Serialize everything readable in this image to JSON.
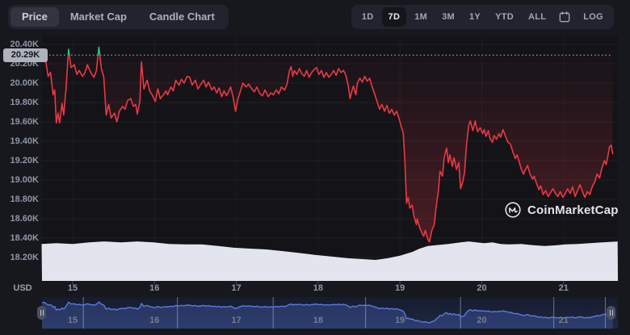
{
  "toolbar": {
    "chart_type_tabs": [
      {
        "label": "Price",
        "selected": true
      },
      {
        "label": "Market Cap",
        "selected": false
      },
      {
        "label": "Candle Chart",
        "selected": false
      }
    ],
    "range_buttons": [
      {
        "label": "1D",
        "selected": false
      },
      {
        "label": "7D",
        "selected": true
      },
      {
        "label": "1M",
        "selected": false
      },
      {
        "label": "3M",
        "selected": false
      },
      {
        "label": "1Y",
        "selected": false
      },
      {
        "label": "YTD",
        "selected": false
      },
      {
        "label": "ALL",
        "selected": false
      }
    ],
    "calendar_icon": "calendar-icon",
    "log_button": {
      "label": "LOG",
      "selected": false
    }
  },
  "watermark": {
    "logo_icon": "coinmarketcap-logo-icon",
    "text": "CoinMarketCap"
  },
  "chart_data": {
    "type": "line",
    "unit_label": "USD",
    "baseline": {
      "value": 20.29,
      "label": "20.29K"
    },
    "y_axis": {
      "ticks": [
        {
          "label": "20.40K",
          "value": 20.4
        },
        {
          "label": "20.20K",
          "value": 20.2
        },
        {
          "label": "20.00K",
          "value": 20.0
        },
        {
          "label": "19.80K",
          "value": 19.8
        },
        {
          "label": "19.60K",
          "value": 19.6
        },
        {
          "label": "19.40K",
          "value": 19.4
        },
        {
          "label": "19.20K",
          "value": 19.2
        },
        {
          "label": "19.00K",
          "value": 19.0
        },
        {
          "label": "18.80K",
          "value": 18.8
        },
        {
          "label": "18.60K",
          "value": 18.6
        },
        {
          "label": "18.40K",
          "value": 18.4
        },
        {
          "label": "18.20K",
          "value": 18.2
        }
      ]
    },
    "x_axis": {
      "ticks": [
        {
          "label": "15",
          "day": 15
        },
        {
          "label": "16",
          "day": 16
        },
        {
          "label": "17",
          "day": 17
        },
        {
          "label": "18",
          "day": 18
        },
        {
          "label": "19",
          "day": 19
        },
        {
          "label": "20",
          "day": 20
        },
        {
          "label": "21",
          "day": 21
        }
      ]
    },
    "colors": {
      "line_down": "#ea3943",
      "line_up": "#16c784",
      "fill_down": "rgba(234,57,67,0.30)",
      "volume_area": "#e2e5ee",
      "navigator_line": "#5b7ae0",
      "navigator_fill": "rgba(80,110,210,0.30)",
      "baseline_tag_bg": "#aeb2bd"
    },
    "price_series": [
      [
        14.62,
        20.29
      ],
      [
        14.65,
        20.34
      ],
      [
        14.67,
        20.23
      ],
      [
        14.7,
        20.07
      ],
      [
        14.73,
        20.11
      ],
      [
        14.76,
        19.88
      ],
      [
        14.78,
        19.93
      ],
      [
        14.8,
        19.59
      ],
      [
        14.82,
        19.69
      ],
      [
        14.84,
        19.59
      ],
      [
        14.87,
        19.79
      ],
      [
        14.89,
        19.67
      ],
      [
        14.92,
        19.96
      ],
      [
        14.95,
        20.35
      ],
      [
        14.98,
        20.16
      ],
      [
        15.02,
        20.19
      ],
      [
        15.05,
        20.09
      ],
      [
        15.08,
        20.13
      ],
      [
        15.12,
        20.07
      ],
      [
        15.15,
        20.11
      ],
      [
        15.18,
        20.19
      ],
      [
        15.22,
        20.11
      ],
      [
        15.26,
        20.06
      ],
      [
        15.29,
        20.13
      ],
      [
        15.32,
        20.37
      ],
      [
        15.35,
        20.15
      ],
      [
        15.38,
        20.06
      ],
      [
        15.41,
        19.67
      ],
      [
        15.44,
        19.78
      ],
      [
        15.47,
        19.64
      ],
      [
        15.51,
        19.69
      ],
      [
        15.54,
        19.6
      ],
      [
        15.57,
        19.71
      ],
      [
        15.61,
        19.76
      ],
      [
        15.64,
        19.73
      ],
      [
        15.67,
        19.82
      ],
      [
        15.71,
        19.84
      ],
      [
        15.74,
        19.76
      ],
      [
        15.77,
        19.78
      ],
      [
        15.79,
        19.68
      ],
      [
        15.82,
        19.81
      ],
      [
        15.84,
        20.22
      ],
      [
        15.87,
        19.94
      ],
      [
        15.91,
        20.03
      ],
      [
        15.94,
        19.92
      ],
      [
        15.97,
        19.88
      ],
      [
        16.01,
        19.81
      ],
      [
        16.04,
        19.94
      ],
      [
        16.07,
        19.84
      ],
      [
        16.11,
        19.88
      ],
      [
        16.14,
        19.92
      ],
      [
        16.16,
        19.88
      ],
      [
        16.2,
        19.96
      ],
      [
        16.23,
        19.92
      ],
      [
        16.26,
        20.03
      ],
      [
        16.3,
        19.98
      ],
      [
        16.33,
        20.04
      ],
      [
        16.36,
        20.0
      ],
      [
        16.4,
        20.07
      ],
      [
        16.43,
        20.06
      ],
      [
        16.46,
        19.98
      ],
      [
        16.5,
        20.03
      ],
      [
        16.53,
        19.94
      ],
      [
        16.56,
        19.98
      ],
      [
        16.6,
        20.03
      ],
      [
        16.63,
        19.96
      ],
      [
        16.66,
        20.01
      ],
      [
        16.7,
        19.93
      ],
      [
        16.73,
        19.96
      ],
      [
        16.76,
        19.9
      ],
      [
        16.79,
        19.95
      ],
      [
        16.82,
        19.86
      ],
      [
        16.85,
        19.92
      ],
      [
        16.88,
        19.87
      ],
      [
        16.9,
        19.9
      ],
      [
        16.93,
        19.96
      ],
      [
        16.96,
        19.86
      ],
      [
        16.99,
        19.71
      ],
      [
        17.02,
        19.84
      ],
      [
        17.05,
        19.92
      ],
      [
        17.08,
        20.0
      ],
      [
        17.12,
        19.96
      ],
      [
        17.15,
        19.99
      ],
      [
        17.19,
        19.94
      ],
      [
        17.22,
        19.91
      ],
      [
        17.25,
        19.96
      ],
      [
        17.29,
        19.89
      ],
      [
        17.32,
        19.87
      ],
      [
        17.35,
        19.93
      ],
      [
        17.39,
        19.86
      ],
      [
        17.42,
        19.9
      ],
      [
        17.45,
        19.88
      ],
      [
        17.49,
        19.93
      ],
      [
        17.52,
        19.89
      ],
      [
        17.55,
        19.96
      ],
      [
        17.59,
        19.93
      ],
      [
        17.62,
        19.99
      ],
      [
        17.65,
        20.13
      ],
      [
        17.67,
        20.17
      ],
      [
        17.69,
        20.07
      ],
      [
        17.71,
        20.13
      ],
      [
        17.74,
        20.09
      ],
      [
        17.77,
        20.15
      ],
      [
        17.8,
        20.1
      ],
      [
        17.83,
        20.07
      ],
      [
        17.86,
        20.13
      ],
      [
        17.89,
        20.06
      ],
      [
        17.92,
        20.11
      ],
      [
        17.95,
        20.14
      ],
      [
        17.98,
        20.16
      ],
      [
        18.01,
        20.09
      ],
      [
        18.04,
        20.13
      ],
      [
        18.07,
        20.06
      ],
      [
        18.1,
        20.11
      ],
      [
        18.13,
        20.06
      ],
      [
        18.16,
        20.09
      ],
      [
        18.19,
        20.13
      ],
      [
        18.22,
        20.08
      ],
      [
        18.25,
        20.15
      ],
      [
        18.28,
        20.11
      ],
      [
        18.31,
        20.13
      ],
      [
        18.34,
        20.08
      ],
      [
        18.37,
        19.96
      ],
      [
        18.39,
        19.84
      ],
      [
        18.41,
        19.91
      ],
      [
        18.43,
        19.97
      ],
      [
        18.46,
        19.88
      ],
      [
        18.48,
        20.0
      ],
      [
        18.51,
        20.05
      ],
      [
        18.54,
        20.01
      ],
      [
        18.57,
        20.07
      ],
      [
        18.6,
        20.02
      ],
      [
        18.63,
        20.05
      ],
      [
        18.66,
        19.96
      ],
      [
        18.69,
        19.89
      ],
      [
        18.72,
        19.81
      ],
      [
        18.75,
        19.73
      ],
      [
        18.78,
        19.78
      ],
      [
        18.81,
        19.71
      ],
      [
        18.84,
        19.77
      ],
      [
        18.87,
        19.69
      ],
      [
        18.9,
        19.73
      ],
      [
        18.93,
        19.67
      ],
      [
        18.96,
        19.71
      ],
      [
        18.99,
        19.63
      ],
      [
        19.02,
        19.54
      ],
      [
        19.04,
        19.48
      ],
      [
        19.06,
        19.19
      ],
      [
        19.08,
        18.76
      ],
      [
        19.1,
        18.82
      ],
      [
        19.12,
        18.71
      ],
      [
        19.15,
        18.74
      ],
      [
        19.17,
        18.63
      ],
      [
        19.2,
        18.54
      ],
      [
        19.21,
        18.6
      ],
      [
        19.24,
        18.51
      ],
      [
        19.27,
        18.45
      ],
      [
        19.29,
        18.42
      ],
      [
        19.31,
        18.48
      ],
      [
        19.34,
        18.39
      ],
      [
        19.36,
        18.36
      ],
      [
        19.39,
        18.48
      ],
      [
        19.42,
        18.54
      ],
      [
        19.44,
        18.71
      ],
      [
        19.47,
        18.89
      ],
      [
        19.49,
        19.09
      ],
      [
        19.52,
        19.04
      ],
      [
        19.54,
        19.23
      ],
      [
        19.57,
        19.33
      ],
      [
        19.59,
        19.18
      ],
      [
        19.61,
        19.26
      ],
      [
        19.64,
        19.14
      ],
      [
        19.66,
        19.23
      ],
      [
        19.69,
        19.11
      ],
      [
        19.72,
        19.18
      ],
      [
        19.74,
        18.91
      ],
      [
        19.77,
        18.99
      ],
      [
        19.79,
        19.08
      ],
      [
        19.81,
        19.34
      ],
      [
        19.84,
        19.56
      ],
      [
        19.86,
        19.61
      ],
      [
        19.89,
        19.51
      ],
      [
        19.92,
        19.61
      ],
      [
        19.93,
        19.56
      ],
      [
        19.95,
        19.5
      ],
      [
        19.98,
        19.54
      ],
      [
        20.01,
        19.48
      ],
      [
        20.03,
        19.52
      ],
      [
        20.05,
        19.45
      ],
      [
        20.08,
        19.51
      ],
      [
        20.1,
        19.43
      ],
      [
        20.13,
        19.39
      ],
      [
        20.15,
        19.46
      ],
      [
        20.18,
        19.42
      ],
      [
        20.21,
        19.48
      ],
      [
        20.23,
        19.44
      ],
      [
        20.26,
        19.52
      ],
      [
        20.29,
        19.45
      ],
      [
        20.32,
        19.39
      ],
      [
        20.35,
        19.37
      ],
      [
        20.38,
        19.29
      ],
      [
        20.41,
        19.22
      ],
      [
        20.43,
        19.26
      ],
      [
        20.46,
        19.18
      ],
      [
        20.48,
        19.12
      ],
      [
        20.51,
        19.06
      ],
      [
        20.53,
        19.1
      ],
      [
        20.56,
        19.15
      ],
      [
        20.59,
        19.06
      ],
      [
        20.62,
        19.01
      ],
      [
        20.64,
        19.04
      ],
      [
        20.67,
        18.96
      ],
      [
        20.7,
        18.9
      ],
      [
        20.72,
        18.94
      ],
      [
        20.75,
        18.85
      ],
      [
        20.78,
        18.89
      ],
      [
        20.81,
        18.83
      ],
      [
        20.84,
        18.87
      ],
      [
        20.87,
        18.91
      ],
      [
        20.9,
        18.86
      ],
      [
        20.93,
        18.83
      ],
      [
        20.96,
        18.88
      ],
      [
        20.99,
        18.82
      ],
      [
        21.02,
        18.86
      ],
      [
        21.05,
        18.91
      ],
      [
        21.08,
        18.86
      ],
      [
        21.11,
        18.93
      ],
      [
        21.14,
        18.83
      ],
      [
        21.17,
        18.89
      ],
      [
        21.2,
        18.95
      ],
      [
        21.23,
        18.88
      ],
      [
        21.26,
        18.82
      ],
      [
        21.29,
        18.88
      ],
      [
        21.32,
        18.85
      ],
      [
        21.35,
        18.93
      ],
      [
        21.38,
        18.98
      ],
      [
        21.41,
        19.06
      ],
      [
        21.44,
        19.02
      ],
      [
        21.47,
        19.13
      ],
      [
        21.5,
        19.2
      ],
      [
        21.52,
        19.16
      ],
      [
        21.54,
        19.24
      ],
      [
        21.56,
        19.34
      ],
      [
        21.58,
        19.36
      ],
      [
        21.6,
        19.27
      ]
    ],
    "volume_series": [
      [
        14.62,
        0.88
      ],
      [
        14.8,
        0.9
      ],
      [
        15.0,
        0.88
      ],
      [
        15.2,
        0.92
      ],
      [
        15.39,
        0.94
      ],
      [
        15.59,
        0.92
      ],
      [
        15.79,
        0.94
      ],
      [
        15.99,
        0.92
      ],
      [
        16.18,
        0.88
      ],
      [
        16.38,
        0.87
      ],
      [
        16.58,
        0.87
      ],
      [
        16.78,
        0.83
      ],
      [
        16.97,
        0.79
      ],
      [
        17.17,
        0.77
      ],
      [
        17.37,
        0.75
      ],
      [
        17.57,
        0.71
      ],
      [
        17.76,
        0.67
      ],
      [
        17.96,
        0.62
      ],
      [
        18.16,
        0.58
      ],
      [
        18.36,
        0.54
      ],
      [
        18.55,
        0.52
      ],
      [
        18.7,
        0.5
      ],
      [
        18.85,
        0.54
      ],
      [
        19.0,
        0.6
      ],
      [
        19.15,
        0.69
      ],
      [
        19.24,
        0.77
      ],
      [
        19.34,
        0.83
      ],
      [
        19.44,
        0.85
      ],
      [
        19.59,
        0.88
      ],
      [
        19.74,
        0.92
      ],
      [
        19.84,
        0.94
      ],
      [
        19.94,
        0.92
      ],
      [
        20.03,
        0.9
      ],
      [
        20.13,
        0.92
      ],
      [
        20.23,
        0.88
      ],
      [
        20.33,
        0.87
      ],
      [
        20.48,
        0.88
      ],
      [
        20.63,
        0.85
      ],
      [
        20.77,
        0.83
      ],
      [
        20.92,
        0.85
      ],
      [
        21.02,
        0.87
      ],
      [
        21.17,
        0.88
      ],
      [
        21.32,
        0.9
      ],
      [
        21.47,
        0.92
      ],
      [
        21.66,
        0.94
      ]
    ],
    "navigator": {
      "separator_days": [
        15.13,
        16.28,
        17.45,
        18.58,
        19.74,
        20.88,
        21.51
      ]
    }
  }
}
